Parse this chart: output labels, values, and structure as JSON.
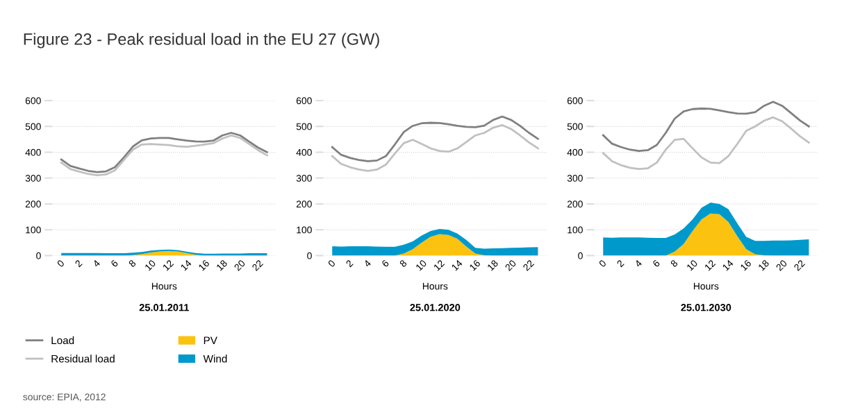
{
  "chart_data": [
    {
      "type": "line",
      "title": "Figure 23 - Peak residual load in the EU 27 (GW)",
      "subtitle": "25.01.2011",
      "xlabel": "Hours",
      "x": [
        0,
        1,
        2,
        3,
        4,
        5,
        6,
        7,
        8,
        9,
        10,
        11,
        12,
        13,
        14,
        15,
        16,
        17,
        18,
        19,
        20,
        21,
        22,
        23
      ],
      "xlim": [
        -1,
        24
      ],
      "xticks": [
        0,
        2,
        4,
        6,
        8,
        10,
        12,
        14,
        16,
        18,
        20,
        22
      ],
      "ylim": [
        0,
        600
      ],
      "yticks": [
        0,
        100,
        200,
        300,
        400,
        500,
        600
      ],
      "grid": "y",
      "legend": "bottom left",
      "stacked": true,
      "annotations": [
        "source: EPIA, 2012"
      ],
      "series": [
        {
          "name": "PV",
          "type": "area",
          "color": "#fcc210",
          "values": [
            0,
            0,
            0,
            0,
            0,
            0,
            0,
            0,
            2,
            6,
            12,
            16,
            18,
            16,
            10,
            3,
            0,
            0,
            0,
            0,
            0,
            0,
            0,
            0
          ]
        },
        {
          "name": "Wind",
          "type": "area",
          "color": "#0099cc",
          "values": [
            10,
            10,
            10,
            10,
            10,
            9,
            9,
            9,
            9,
            8,
            7,
            6,
            5,
            5,
            5,
            7,
            7,
            7,
            8,
            8,
            8,
            9,
            9,
            9
          ]
        },
        {
          "name": "Load",
          "type": "line",
          "color": "#808080",
          "values": [
            372,
            347,
            337,
            328,
            323,
            326,
            342,
            380,
            422,
            446,
            453,
            455,
            455,
            450,
            445,
            442,
            441,
            445,
            465,
            475,
            465,
            441,
            418,
            400
          ]
        },
        {
          "name": "Residual load",
          "type": "line",
          "color": "#c0c0c0",
          "values": [
            360,
            335,
            325,
            316,
            311,
            314,
            330,
            370,
            410,
            430,
            432,
            430,
            428,
            423,
            421,
            425,
            430,
            435,
            453,
            465,
            455,
            432,
            408,
            388
          ]
        }
      ]
    },
    {
      "type": "line",
      "subtitle": "25.01.2020",
      "xlabel": "Hours",
      "x": [
        0,
        1,
        2,
        3,
        4,
        5,
        6,
        7,
        8,
        9,
        10,
        11,
        12,
        13,
        14,
        15,
        16,
        17,
        18,
        19,
        20,
        21,
        22,
        23
      ],
      "xlim": [
        -1,
        24
      ],
      "xticks": [
        0,
        2,
        4,
        6,
        8,
        10,
        12,
        14,
        16,
        18,
        20,
        22
      ],
      "ylim": [
        0,
        600
      ],
      "yticks": [
        0,
        100,
        200,
        300,
        400,
        500,
        600
      ],
      "grid": "y",
      "stacked": true,
      "series": [
        {
          "type": "area",
          "color": "#fcc210",
          "values": [
            0,
            0,
            0,
            0,
            0,
            0,
            0,
            0,
            8,
            25,
            50,
            73,
            83,
            80,
            65,
            35,
            8,
            1,
            0,
            0,
            0,
            0,
            0,
            0
          ]
        },
        {
          "type": "area",
          "color": "#0099cc",
          "values": [
            36,
            35,
            36,
            36,
            36,
            35,
            34,
            34,
            34,
            30,
            28,
            22,
            20,
            20,
            20,
            25,
            22,
            26,
            28,
            29,
            30,
            31,
            32,
            33
          ]
        },
        {
          "type": "line",
          "color": "#808080",
          "values": [
            420,
            390,
            378,
            370,
            365,
            368,
            385,
            430,
            478,
            502,
            512,
            514,
            513,
            508,
            502,
            498,
            497,
            503,
            525,
            538,
            525,
            502,
            475,
            452
          ]
        },
        {
          "type": "line",
          "color": "#c0c0c0",
          "values": [
            385,
            355,
            342,
            333,
            328,
            333,
            352,
            395,
            435,
            448,
            432,
            415,
            405,
            402,
            415,
            440,
            465,
            475,
            495,
            505,
            490,
            465,
            438,
            415
          ]
        }
      ]
    },
    {
      "type": "line",
      "subtitle": "25.01.2030",
      "xlabel": "Hours",
      "x": [
        0,
        1,
        2,
        3,
        4,
        5,
        6,
        7,
        8,
        9,
        10,
        11,
        12,
        13,
        14,
        15,
        16,
        17,
        18,
        19,
        20,
        21,
        22,
        23
      ],
      "xlim": [
        -1,
        24
      ],
      "xticks": [
        0,
        2,
        4,
        6,
        8,
        10,
        12,
        14,
        16,
        18,
        20,
        22
      ],
      "ylim": [
        0,
        600
      ],
      "yticks": [
        0,
        100,
        200,
        300,
        400,
        500,
        600
      ],
      "grid": "y",
      "stacked": true,
      "series": [
        {
          "type": "area",
          "color": "#fcc210",
          "values": [
            0,
            0,
            0,
            0,
            0,
            0,
            0,
            0,
            15,
            45,
            95,
            140,
            163,
            160,
            130,
            75,
            25,
            5,
            1,
            0,
            0,
            0,
            0,
            0
          ]
        },
        {
          "type": "area",
          "color": "#0099cc",
          "values": [
            70,
            69,
            70,
            70,
            70,
            69,
            68,
            68,
            67,
            60,
            45,
            45,
            42,
            40,
            50,
            50,
            47,
            52,
            56,
            58,
            58,
            59,
            61,
            63
          ]
        },
        {
          "type": "line",
          "color": "#808080",
          "values": [
            466,
            433,
            420,
            410,
            405,
            408,
            428,
            475,
            530,
            558,
            567,
            569,
            568,
            562,
            555,
            550,
            549,
            555,
            580,
            595,
            580,
            552,
            523,
            500
          ]
        },
        {
          "type": "line",
          "color": "#c0c0c0",
          "values": [
            397,
            365,
            350,
            340,
            335,
            338,
            360,
            410,
            448,
            452,
            415,
            380,
            360,
            358,
            385,
            432,
            483,
            500,
            522,
            535,
            520,
            492,
            462,
            437
          ]
        }
      ]
    }
  ]
}
